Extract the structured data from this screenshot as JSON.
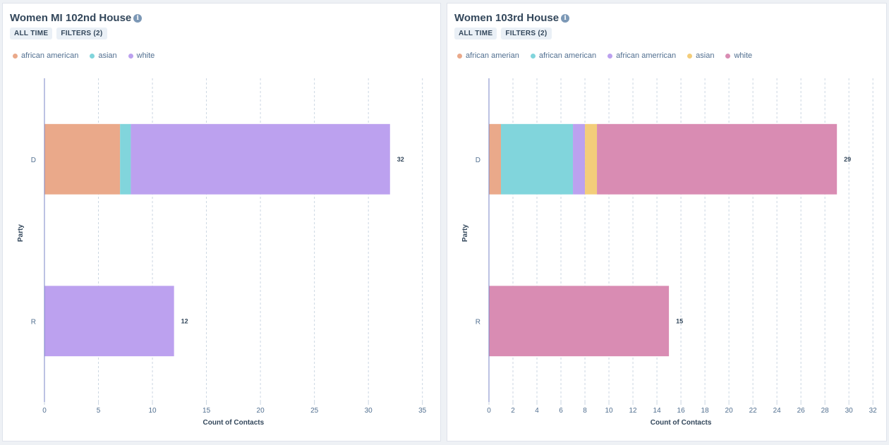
{
  "charts": [
    {
      "title": "Women MI 102nd House",
      "tags": [
        "ALL TIME",
        "FILTERS (2)"
      ],
      "legend": [
        {
          "name": "african american",
          "color": "#eaa98a"
        },
        {
          "name": "asian",
          "color": "#81d5dc"
        },
        {
          "name": "white",
          "color": "#bca1ef"
        }
      ]
    },
    {
      "title": "Women 103rd House",
      "tags": [
        "ALL TIME",
        "FILTERS (2)"
      ],
      "legend": [
        {
          "name": "african amerian",
          "color": "#eaa98a"
        },
        {
          "name": "african american",
          "color": "#81d5dc"
        },
        {
          "name": "african amerrican",
          "color": "#bca1ef"
        },
        {
          "name": "asian",
          "color": "#f3cd7a"
        },
        {
          "name": "white",
          "color": "#d98cb3"
        }
      ]
    }
  ],
  "chart_data": [
    {
      "type": "bar",
      "orientation": "horizontal",
      "stacked": true,
      "title": "Women MI 102nd House",
      "categories": [
        "D",
        "R"
      ],
      "series": [
        {
          "name": "african american",
          "color": "#eaa98a",
          "values": [
            7,
            0
          ]
        },
        {
          "name": "asian",
          "color": "#81d5dc",
          "values": [
            1,
            0
          ]
        },
        {
          "name": "white",
          "color": "#bca1ef",
          "values": [
            24,
            12
          ]
        }
      ],
      "totals": [
        32,
        12
      ],
      "xlabel": "Count of Contacts",
      "ylabel": "Party",
      "xlim": [
        0,
        36
      ],
      "xticks": [
        0,
        5,
        10,
        15,
        20,
        25,
        30,
        35
      ],
      "grid": true,
      "legend_position": "top-left"
    },
    {
      "type": "bar",
      "orientation": "horizontal",
      "stacked": true,
      "title": "Women 103rd House",
      "categories": [
        "D",
        "R"
      ],
      "series": [
        {
          "name": "african amerian",
          "color": "#eaa98a",
          "values": [
            1,
            0
          ]
        },
        {
          "name": "african american",
          "color": "#81d5dc",
          "values": [
            6,
            0
          ]
        },
        {
          "name": "african amerrican",
          "color": "#bca1ef",
          "values": [
            1,
            0
          ]
        },
        {
          "name": "asian",
          "color": "#f3cd7a",
          "values": [
            1,
            0
          ]
        },
        {
          "name": "white",
          "color": "#d98cb3",
          "values": [
            20,
            15
          ]
        }
      ],
      "totals": [
        29,
        15
      ],
      "xlabel": "Count of Contacts",
      "ylabel": "Party",
      "xlim": [
        0,
        32.4
      ],
      "xticks": [
        0,
        2,
        4,
        6,
        8,
        10,
        12,
        14,
        16,
        18,
        20,
        22,
        24,
        26,
        28,
        30,
        32
      ],
      "grid": true,
      "legend_position": "top-left"
    }
  ]
}
